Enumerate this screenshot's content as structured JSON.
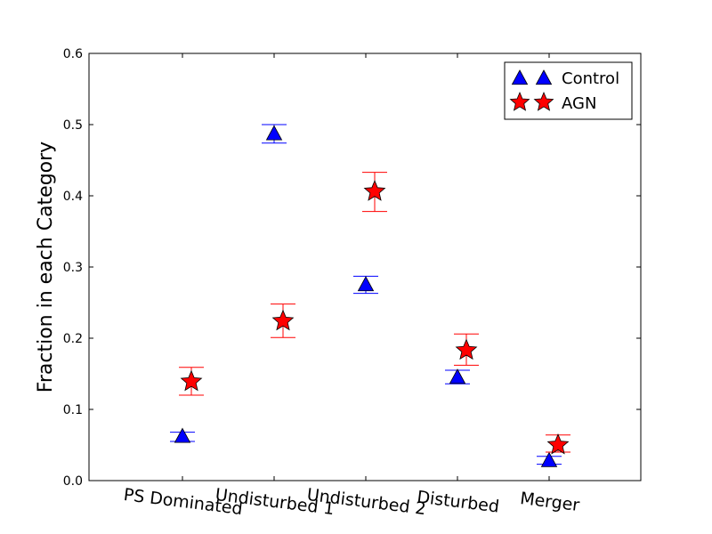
{
  "chart_data": {
    "type": "scatter",
    "categories": [
      "PS Dominated",
      "Undisturbed 1",
      "Undisturbed 2",
      "Disturbed",
      "Merger"
    ],
    "ylabel": "Fraction in each Category",
    "xlabel": "",
    "ylim": [
      0.0,
      0.6
    ],
    "yticks": [
      "0.0",
      "0.1",
      "0.2",
      "0.3",
      "0.4",
      "0.5",
      "0.6"
    ],
    "grid": false,
    "legend_position": "top-right",
    "series": [
      {
        "name": "Control",
        "marker": "triangle",
        "color": "#0000ff",
        "error_color": "#0000ff",
        "values": [
          0.062,
          0.487,
          0.275,
          0.145,
          0.028
        ],
        "err_low": [
          0.055,
          0.474,
          0.263,
          0.136,
          0.023
        ],
        "err_high": [
          0.068,
          0.5,
          0.287,
          0.155,
          0.034
        ]
      },
      {
        "name": "AGN",
        "marker": "star",
        "color": "#ff0000",
        "error_color": "#ff0000",
        "values": [
          0.139,
          0.224,
          0.406,
          0.183,
          0.05
        ],
        "err_low": [
          0.12,
          0.201,
          0.378,
          0.162,
          0.04
        ],
        "err_high": [
          0.159,
          0.248,
          0.433,
          0.206,
          0.064
        ]
      }
    ]
  }
}
